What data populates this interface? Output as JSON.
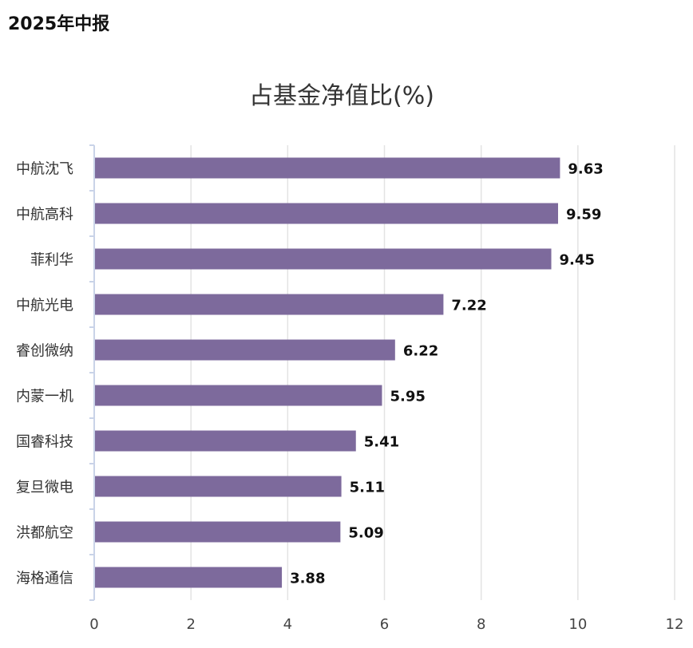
{
  "header": {
    "title": "2025年中报"
  },
  "chart_data": {
    "type": "bar",
    "orientation": "horizontal",
    "title": "占基金净值比(%)",
    "xlabel": "",
    "ylabel": "",
    "categories": [
      "中航沈飞",
      "中航高科",
      "菲利华",
      "中航光电",
      "睿创微纳",
      "内蒙一机",
      "国睿科技",
      "复旦微电",
      "洪都航空",
      "海格通信"
    ],
    "values": [
      9.63,
      9.59,
      9.45,
      7.22,
      6.22,
      5.95,
      5.41,
      5.11,
      5.09,
      3.88
    ],
    "value_labels": [
      "9.63",
      "9.59",
      "9.45",
      "7.22",
      "6.22",
      "5.95",
      "5.41",
      "5.11",
      "5.09",
      "3.88"
    ],
    "xlim": [
      0,
      12
    ],
    "xticks": [
      0,
      2,
      4,
      6,
      8,
      10,
      12
    ],
    "xtick_labels": [
      "0",
      "2",
      "4",
      "6",
      "8",
      "10",
      "12"
    ],
    "grid": true,
    "legend": "none",
    "bar_color": "#7d6a9c",
    "grid_color": "#e3e3e3",
    "axis_color": "#c9d3e8"
  }
}
